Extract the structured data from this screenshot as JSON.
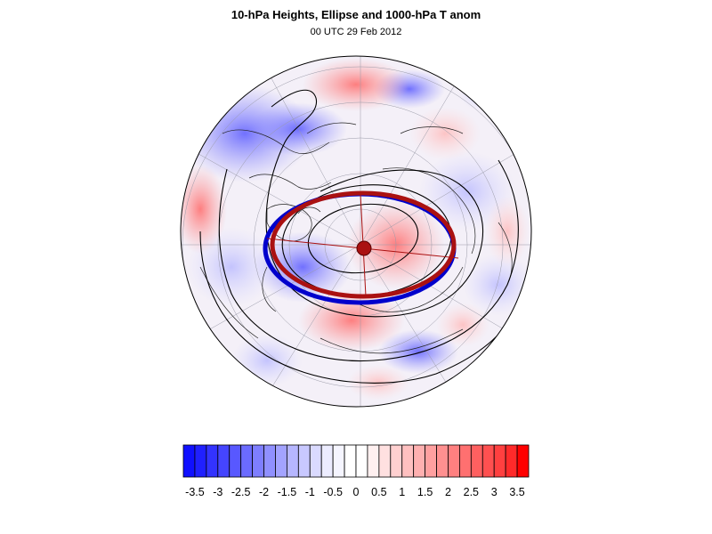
{
  "title": "10-hPa Heights, Ellipse and 1000-hPa T anom",
  "subtitle": "00 UTC 29 Feb 2012",
  "map": {
    "projection": "polar stereographic (north pole)",
    "field": "1000-hPa temperature anomaly",
    "overlays": [
      "10-hPa height contours",
      "vortex ellipse",
      "vortex centroid"
    ],
    "ellipse_colors": [
      "#0000cc",
      "#aa1111"
    ],
    "contour_color": "#000000"
  },
  "colorbar": {
    "min": -3.75,
    "max": 3.75,
    "step": 0.25,
    "tick_labels": [
      "-3.5",
      "-3",
      "-2.5",
      "-2",
      "-1.5",
      "-1",
      "-0.5",
      "0",
      "0.5",
      "1",
      "1.5",
      "2",
      "2.5",
      "3",
      "3.5"
    ],
    "colors": [
      "#1010ff",
      "#2020ff",
      "#3333ff",
      "#4545ff",
      "#5858ff",
      "#6b6bff",
      "#7e7eff",
      "#9090ff",
      "#a3a3ff",
      "#b6b6ff",
      "#c8c8ff",
      "#dadaff",
      "#ececff",
      "#f5f5ff",
      "#ffffff",
      "#ffffff",
      "#fff0f0",
      "#ffe0e0",
      "#ffd0d0",
      "#ffc0c0",
      "#ffb0b0",
      "#ffa0a0",
      "#ff9090",
      "#ff8080",
      "#ff7070",
      "#ff6060",
      "#ff5050",
      "#ff4040",
      "#ff2a2a",
      "#ff0000"
    ]
  }
}
